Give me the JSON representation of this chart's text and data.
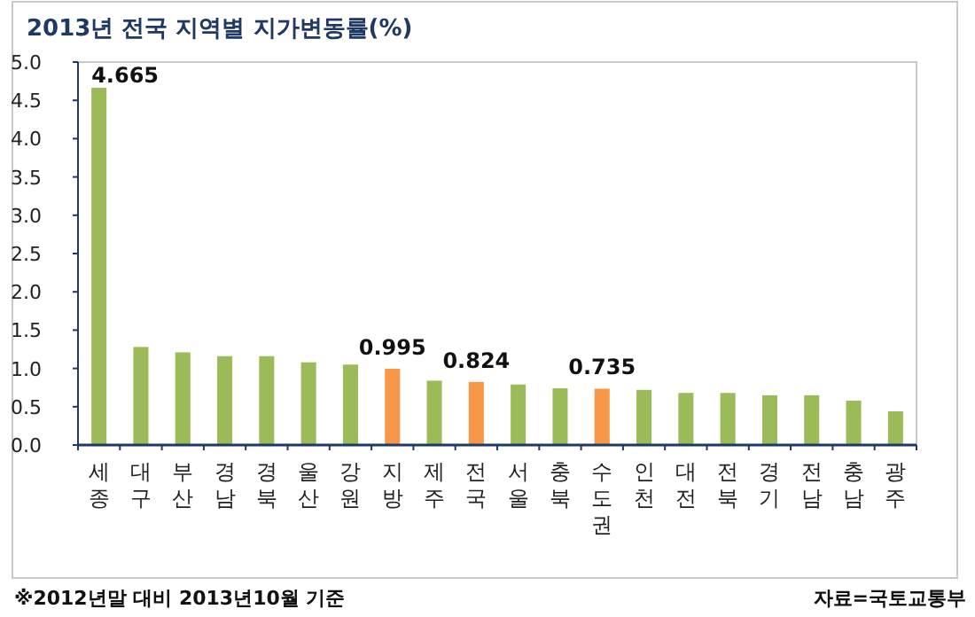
{
  "chart_data": {
    "type": "bar",
    "title": "2013년 전국 지역별 지가변동률(%)",
    "categories": [
      "세종",
      "대구",
      "부산",
      "경남",
      "경북",
      "울산",
      "강원",
      "지방",
      "제주",
      "전국",
      "서울",
      "충북",
      "수도권",
      "인천",
      "대전",
      "전북",
      "경기",
      "전남",
      "충남",
      "광주"
    ],
    "values": [
      4.665,
      1.28,
      1.21,
      1.16,
      1.16,
      1.08,
      1.05,
      0.995,
      0.84,
      0.824,
      0.79,
      0.74,
      0.735,
      0.72,
      0.68,
      0.68,
      0.65,
      0.65,
      0.58,
      0.44
    ],
    "colors": [
      "#9bbb59",
      "#9bbb59",
      "#9bbb59",
      "#9bbb59",
      "#9bbb59",
      "#9bbb59",
      "#9bbb59",
      "#f79646",
      "#9bbb59",
      "#f79646",
      "#9bbb59",
      "#9bbb59",
      "#f79646",
      "#9bbb59",
      "#9bbb59",
      "#9bbb59",
      "#9bbb59",
      "#9bbb59",
      "#9bbb59",
      "#9bbb59"
    ],
    "value_labels": [
      "4.665",
      null,
      null,
      null,
      null,
      null,
      null,
      "0.995",
      null,
      "0.824",
      null,
      null,
      "0.735",
      null,
      null,
      null,
      null,
      null,
      null,
      null
    ],
    "ylim": [
      0,
      5
    ],
    "yticks": [
      {
        "value": 0,
        "label": "0.0"
      },
      {
        "value": 0.5,
        "label": "0.5"
      },
      {
        "value": 1,
        "label": "1.0"
      },
      {
        "value": 1.5,
        "label": "1.5"
      },
      {
        "value": 2,
        "label": "2.0"
      },
      {
        "value": 2.5,
        "label": "2.5"
      },
      {
        "value": 3,
        "label": "3.0"
      },
      {
        "value": 3.5,
        "label": "3.5"
      },
      {
        "value": 4,
        "label": "4.0"
      },
      {
        "value": 4.5,
        "label": "4.5"
      },
      {
        "value": 5,
        "label": "5.0"
      }
    ],
    "annotations": [
      "※2012년말 대비 2013년10월 기준",
      "자료=국토교통부"
    ]
  }
}
